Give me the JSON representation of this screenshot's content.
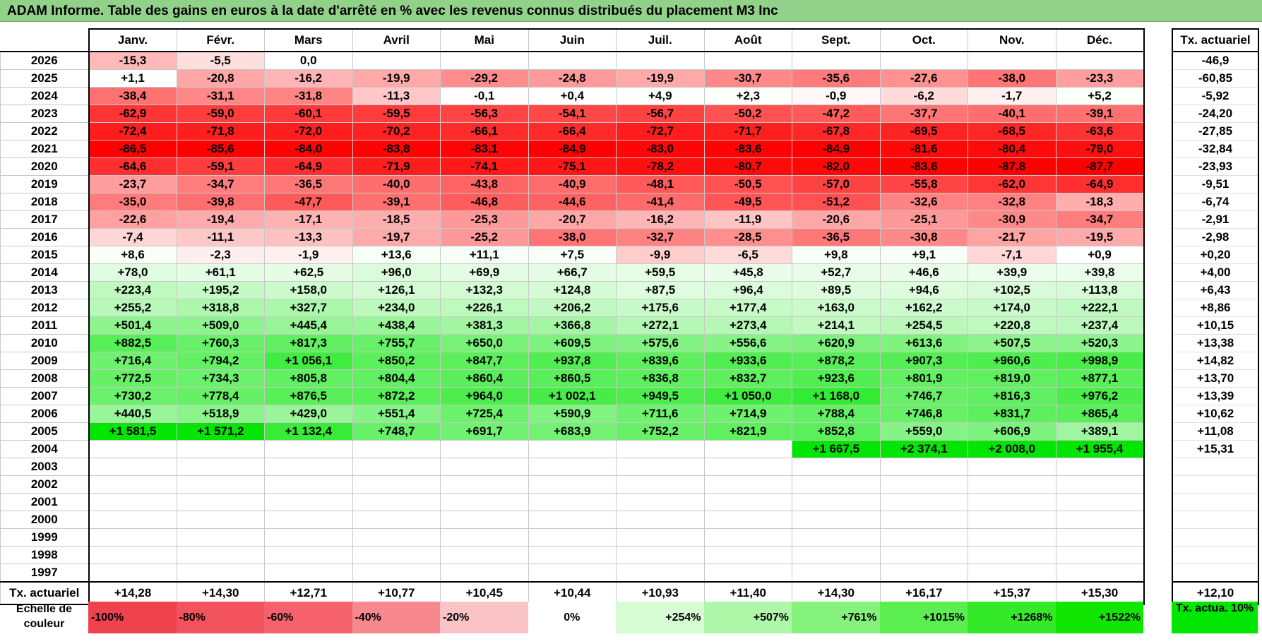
{
  "title": "ADAM Informe. Table des gains en euros à la date d'arrêté en % avec les revenus connus distribués du placement M3 Inc",
  "months": [
    "Janv.",
    "Févr.",
    "Mars",
    "Avril",
    "Mai",
    "Juin",
    "Juil.",
    "Août",
    "Sept.",
    "Oct.",
    "Nov.",
    "Déc."
  ],
  "rate_header": "Tx. actuariel",
  "rows": [
    {
      "year": "2026",
      "cells": [
        "-15,3",
        "-5,5",
        "0,0",
        "",
        "",
        "",
        "",
        "",
        "",
        "",
        "",
        ""
      ],
      "rate": "-46,9"
    },
    {
      "year": "2025",
      "cells": [
        "+1,1",
        "-20,8",
        "-16,2",
        "-19,9",
        "-29,2",
        "-24,8",
        "-19,9",
        "-30,7",
        "-35,6",
        "-27,6",
        "-38,0",
        "-23,3"
      ],
      "rate": "-60,85"
    },
    {
      "year": "2024",
      "cells": [
        "-38,4",
        "-31,1",
        "-31,8",
        "-11,3",
        "-0,1",
        "+0,4",
        "+4,9",
        "+2,3",
        "-0,9",
        "-6,2",
        "-1,7",
        "+5,2"
      ],
      "rate": "-5,92"
    },
    {
      "year": "2023",
      "cells": [
        "-62,9",
        "-59,0",
        "-60,1",
        "-59,5",
        "-56,3",
        "-54,1",
        "-56,7",
        "-50,2",
        "-47,2",
        "-37,7",
        "-40,1",
        "-39,1"
      ],
      "rate": "-24,20"
    },
    {
      "year": "2022",
      "cells": [
        "-72,4",
        "-71,8",
        "-72,0",
        "-70,2",
        "-66,1",
        "-66,4",
        "-72,7",
        "-71,7",
        "-67,8",
        "-69,5",
        "-68,5",
        "-63,6"
      ],
      "rate": "-27,85"
    },
    {
      "year": "2021",
      "cells": [
        "-86,5",
        "-85,6",
        "-84,0",
        "-83,8",
        "-83,1",
        "-84,9",
        "-83,0",
        "-83,6",
        "-84,9",
        "-81,6",
        "-80,4",
        "-79,0"
      ],
      "rate": "-32,84"
    },
    {
      "year": "2020",
      "cells": [
        "-64,6",
        "-59,1",
        "-64,9",
        "-71,9",
        "-74,1",
        "-75,1",
        "-78,2",
        "-80,7",
        "-82,0",
        "-83,6",
        "-87,8",
        "-87,7"
      ],
      "rate": "-23,93"
    },
    {
      "year": "2019",
      "cells": [
        "-23,7",
        "-34,7",
        "-36,5",
        "-40,0",
        "-43,8",
        "-40,9",
        "-48,1",
        "-50,5",
        "-57,0",
        "-55,8",
        "-62,0",
        "-64,9"
      ],
      "rate": "-9,51"
    },
    {
      "year": "2018",
      "cells": [
        "-35,0",
        "-39,8",
        "-47,7",
        "-39,1",
        "-46,8",
        "-44,6",
        "-41,4",
        "-49,5",
        "-51,2",
        "-32,6",
        "-32,8",
        "-18,3"
      ],
      "rate": "-6,74"
    },
    {
      "year": "2017",
      "cells": [
        "-22,6",
        "-19,4",
        "-17,1",
        "-18,5",
        "-25,3",
        "-20,7",
        "-16,2",
        "-11,9",
        "-20,6",
        "-25,1",
        "-30,9",
        "-34,7"
      ],
      "rate": "-2,91"
    },
    {
      "year": "2016",
      "cells": [
        "-7,4",
        "-11,1",
        "-13,3",
        "-19,7",
        "-25,2",
        "-38,0",
        "-32,7",
        "-28,5",
        "-36,5",
        "-30,8",
        "-21,7",
        "-19,5"
      ],
      "rate": "-2,98"
    },
    {
      "year": "2015",
      "cells": [
        "+8,6",
        "-2,3",
        "-1,9",
        "+13,6",
        "+11,1",
        "+7,5",
        "-9,9",
        "-6,5",
        "+9,8",
        "+9,1",
        "-7,1",
        "+0,9"
      ],
      "rate": "+0,20"
    },
    {
      "year": "2014",
      "cells": [
        "+78,0",
        "+61,1",
        "+62,5",
        "+96,0",
        "+69,9",
        "+66,7",
        "+59,5",
        "+45,8",
        "+52,7",
        "+46,6",
        "+39,9",
        "+39,8"
      ],
      "rate": "+4,00"
    },
    {
      "year": "2013",
      "cells": [
        "+223,4",
        "+195,2",
        "+158,0",
        "+126,1",
        "+132,3",
        "+124,8",
        "+87,5",
        "+96,4",
        "+89,5",
        "+94,6",
        "+102,5",
        "+113,8"
      ],
      "rate": "+6,43"
    },
    {
      "year": "2012",
      "cells": [
        "+255,2",
        "+318,8",
        "+327,7",
        "+234,0",
        "+226,1",
        "+206,2",
        "+175,6",
        "+177,4",
        "+163,0",
        "+162,2",
        "+174,0",
        "+222,1"
      ],
      "rate": "+8,86"
    },
    {
      "year": "2011",
      "cells": [
        "+501,4",
        "+509,0",
        "+445,4",
        "+438,4",
        "+381,3",
        "+366,8",
        "+272,1",
        "+273,4",
        "+214,1",
        "+254,5",
        "+220,8",
        "+237,4"
      ],
      "rate": "+10,15"
    },
    {
      "year": "2010",
      "cells": [
        "+882,5",
        "+760,3",
        "+817,3",
        "+755,7",
        "+650,0",
        "+609,5",
        "+575,6",
        "+556,6",
        "+620,9",
        "+613,6",
        "+507,5",
        "+520,3"
      ],
      "rate": "+13,38"
    },
    {
      "year": "2009",
      "cells": [
        "+716,4",
        "+794,2",
        "+1 056,1",
        "+850,2",
        "+847,7",
        "+937,8",
        "+839,6",
        "+933,6",
        "+878,2",
        "+907,3",
        "+960,6",
        "+998,9"
      ],
      "rate": "+14,82"
    },
    {
      "year": "2008",
      "cells": [
        "+772,5",
        "+734,3",
        "+805,8",
        "+804,4",
        "+860,4",
        "+860,5",
        "+836,8",
        "+832,7",
        "+923,6",
        "+801,9",
        "+819,0",
        "+877,1"
      ],
      "rate": "+13,70"
    },
    {
      "year": "2007",
      "cells": [
        "+730,2",
        "+778,4",
        "+876,5",
        "+872,2",
        "+964,0",
        "+1 002,1",
        "+949,5",
        "+1 050,0",
        "+1 168,0",
        "+746,7",
        "+816,3",
        "+976,2"
      ],
      "rate": "+13,39"
    },
    {
      "year": "2006",
      "cells": [
        "+440,5",
        "+518,9",
        "+429,0",
        "+551,4",
        "+725,4",
        "+590,9",
        "+711,6",
        "+714,9",
        "+788,4",
        "+746,8",
        "+831,7",
        "+865,4"
      ],
      "rate": "+10,62"
    },
    {
      "year": "2005",
      "cells": [
        "+1 581,5",
        "+1 571,2",
        "+1 132,4",
        "+748,7",
        "+691,7",
        "+683,9",
        "+752,2",
        "+821,9",
        "+852,8",
        "+559,0",
        "+606,9",
        "+389,1"
      ],
      "rate": "+11,08"
    },
    {
      "year": "2004",
      "cells": [
        "",
        "",
        "",
        "",
        "",
        "",
        "",
        "",
        "+1 667,5",
        "+2 374,1",
        "+2 008,0",
        "+1 955,4"
      ],
      "rate": "+15,31"
    },
    {
      "year": "2003",
      "cells": [
        "",
        "",
        "",
        "",
        "",
        "",
        "",
        "",
        "",
        "",
        "",
        ""
      ],
      "rate": ""
    },
    {
      "year": "2002",
      "cells": [
        "",
        "",
        "",
        "",
        "",
        "",
        "",
        "",
        "",
        "",
        "",
        ""
      ],
      "rate": ""
    },
    {
      "year": "2001",
      "cells": [
        "",
        "",
        "",
        "",
        "",
        "",
        "",
        "",
        "",
        "",
        "",
        ""
      ],
      "rate": ""
    },
    {
      "year": "2000",
      "cells": [
        "",
        "",
        "",
        "",
        "",
        "",
        "",
        "",
        "",
        "",
        "",
        ""
      ],
      "rate": ""
    },
    {
      "year": "1999",
      "cells": [
        "",
        "",
        "",
        "",
        "",
        "",
        "",
        "",
        "",
        "",
        "",
        ""
      ],
      "rate": ""
    },
    {
      "year": "1998",
      "cells": [
        "",
        "",
        "",
        "",
        "",
        "",
        "",
        "",
        "",
        "",
        "",
        ""
      ],
      "rate": ""
    },
    {
      "year": "1997",
      "cells": [
        "",
        "",
        "",
        "",
        "",
        "",
        "",
        "",
        "",
        "",
        "",
        ""
      ],
      "rate": ""
    }
  ],
  "footer": {
    "label": "Tx. actuariel",
    "values": [
      "+14,28",
      "+14,30",
      "+12,71",
      "+10,77",
      "+10,45",
      "+10,44",
      "+10,93",
      "+11,40",
      "+14,30",
      "+16,17",
      "+15,37",
      "+15,30"
    ],
    "rate": "+12,10"
  },
  "legend": {
    "label": "Echelle de couleur",
    "steps": [
      {
        "text": "-100%",
        "color": "#f0424e"
      },
      {
        "text": "-80%",
        "color": "#f2525c"
      },
      {
        "text": "-60%",
        "color": "#f5626b"
      },
      {
        "text": "-40%",
        "color": "#f7888e"
      },
      {
        "text": "-20%",
        "color": "#fac3c6"
      },
      {
        "text": "0%",
        "color": "#ffffff"
      },
      {
        "text": "+254%",
        "color": "#d6fcd3"
      },
      {
        "text": "+507%",
        "color": "#aef7a8"
      },
      {
        "text": "+761%",
        "color": "#84f27c"
      },
      {
        "text": "+1015%",
        "color": "#5aee50"
      },
      {
        "text": "+1268%",
        "color": "#34ea28"
      },
      {
        "text": "+1522%",
        "color": "#10e600"
      }
    ],
    "rate_label": "Tx. actua. 10%",
    "rate_color": "#00e600"
  },
  "colors": {
    "title_bar": "#92d18a",
    "max_negative": "#ff0000",
    "max_positive": "#00e600"
  }
}
